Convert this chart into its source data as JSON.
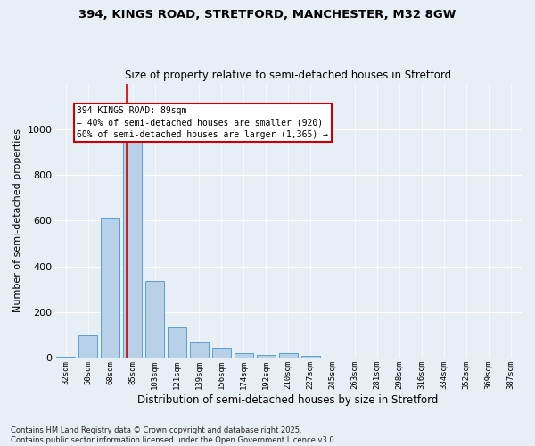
{
  "title1": "394, KINGS ROAD, STRETFORD, MANCHESTER, M32 8GW",
  "title2": "Size of property relative to semi-detached houses in Stretford",
  "xlabel": "Distribution of semi-detached houses by size in Stretford",
  "ylabel": "Number of semi-detached properties",
  "categories": [
    "32sqm",
    "50sqm",
    "68sqm",
    "85sqm",
    "103sqm",
    "121sqm",
    "139sqm",
    "156sqm",
    "174sqm",
    "192sqm",
    "210sqm",
    "227sqm",
    "245sqm",
    "263sqm",
    "281sqm",
    "298sqm",
    "316sqm",
    "334sqm",
    "352sqm",
    "369sqm",
    "387sqm"
  ],
  "values": [
    5,
    100,
    615,
    955,
    335,
    135,
    70,
    45,
    20,
    15,
    20,
    10,
    0,
    0,
    0,
    0,
    0,
    0,
    0,
    0,
    0
  ],
  "bar_color": "#b8d0e8",
  "bar_edge_color": "#5a9fd4",
  "vline_color": "#cc0000",
  "annotation_text": "394 KINGS ROAD: 89sqm\n← 40% of semi-detached houses are smaller (920)\n60% of semi-detached houses are larger (1,365) →",
  "annotation_box_color": "#ffffff",
  "annotation_box_edge": "#cc0000",
  "ylim": [
    0,
    1200
  ],
  "yticks": [
    0,
    200,
    400,
    600,
    800,
    1000
  ],
  "background_color": "#e8eef5",
  "footnote": "Contains HM Land Registry data © Crown copyright and database right 2025.\nContains public sector information licensed under the Open Government Licence v3.0."
}
